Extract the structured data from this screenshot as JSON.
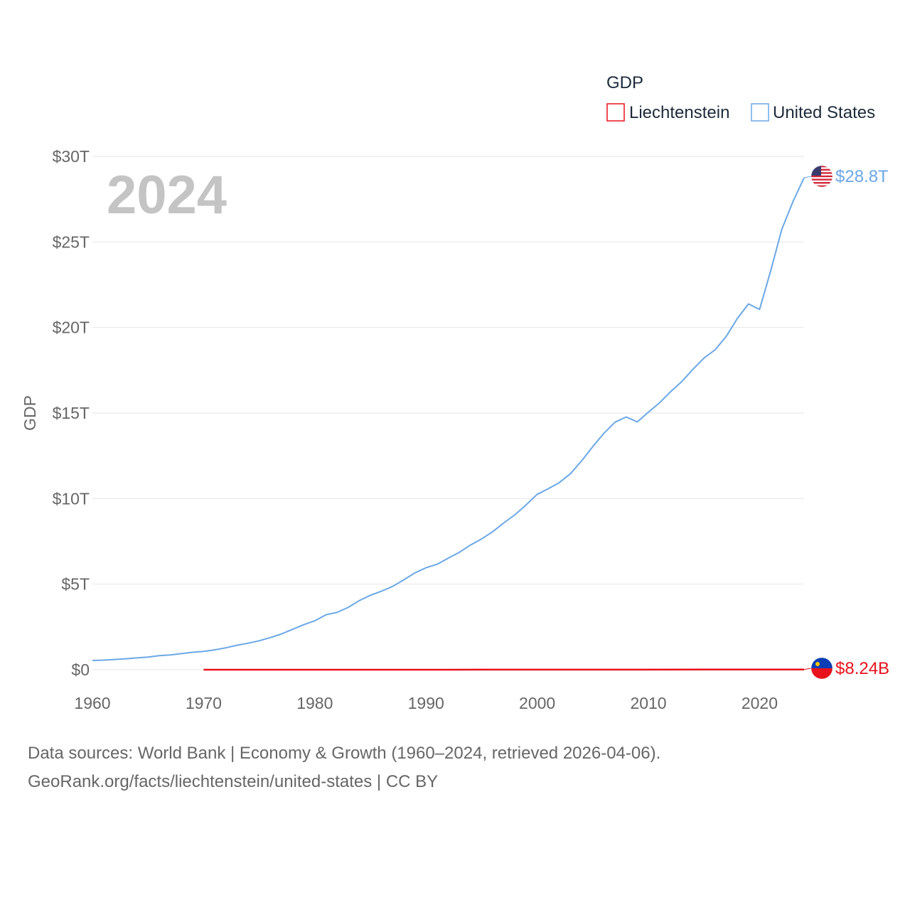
{
  "chart_data": {
    "type": "line",
    "title": "GDP",
    "ylabel": "GDP",
    "xlabel": "",
    "xlim": [
      1960,
      2024
    ],
    "ylim": [
      0,
      30
    ],
    "y_unit": "trillion USD",
    "x_ticks": [
      1960,
      1970,
      1980,
      1990,
      2000,
      2010,
      2020
    ],
    "x_tick_labels": [
      "1960",
      "1970",
      "1980",
      "1990",
      "2000",
      "2010",
      "2020"
    ],
    "y_ticks": [
      0,
      5,
      10,
      15,
      20,
      25,
      30
    ],
    "y_tick_labels": [
      "$0",
      "$5T",
      "$10T",
      "$15T",
      "$20T",
      "$25T",
      "$30T"
    ],
    "grid": true,
    "legend_position": "top-right",
    "year_label": "2024",
    "series": [
      {
        "name": "Liechtenstein",
        "color": "#e8121c",
        "end_label": "$8.24B",
        "flag": "liechtenstein-flag",
        "x": [
          1970,
          1975,
          1980,
          1985,
          1990,
          1995,
          2000,
          2005,
          2010,
          2015,
          2020,
          2023,
          2024
        ],
        "values": [
          0.0001,
          0.0004,
          0.0007,
          0.0006,
          0.0014,
          0.0024,
          0.0025,
          0.0037,
          0.0051,
          0.0063,
          0.0064,
          0.0082,
          0.0082
        ]
      },
      {
        "name": "United States",
        "color": "#6aa8e6",
        "end_label": "$28.8T",
        "flag": "united-states-flag",
        "x": [
          1960,
          1961,
          1962,
          1963,
          1964,
          1965,
          1966,
          1967,
          1968,
          1969,
          1970,
          1971,
          1972,
          1973,
          1974,
          1975,
          1976,
          1977,
          1978,
          1979,
          1980,
          1981,
          1982,
          1983,
          1984,
          1985,
          1986,
          1987,
          1988,
          1989,
          1990,
          1991,
          1992,
          1993,
          1994,
          1995,
          1996,
          1997,
          1998,
          1999,
          2000,
          2001,
          2002,
          2003,
          2004,
          2005,
          2006,
          2007,
          2008,
          2009,
          2010,
          2011,
          2012,
          2013,
          2014,
          2015,
          2016,
          2017,
          2018,
          2019,
          2020,
          2021,
          2022,
          2023,
          2024
        ],
        "values": [
          0.54,
          0.56,
          0.6,
          0.64,
          0.69,
          0.74,
          0.82,
          0.86,
          0.94,
          1.02,
          1.07,
          1.16,
          1.28,
          1.43,
          1.55,
          1.69,
          1.88,
          2.09,
          2.36,
          2.63,
          2.86,
          3.21,
          3.35,
          3.64,
          4.04,
          4.35,
          4.59,
          4.87,
          5.25,
          5.66,
          5.96,
          6.16,
          6.52,
          6.86,
          7.29,
          7.64,
          8.07,
          8.58,
          9.06,
          9.63,
          10.25,
          10.58,
          10.94,
          11.46,
          12.21,
          13.04,
          13.82,
          14.47,
          14.77,
          14.48,
          15.05,
          15.6,
          16.25,
          16.84,
          17.55,
          18.21,
          18.7,
          19.48,
          20.53,
          21.38,
          21.06,
          23.32,
          25.74,
          27.36,
          28.75
        ]
      }
    ]
  },
  "footer": {
    "line1": "Data sources: World Bank | Economy & Growth (1960–2024, retrieved 2026-04-06).",
    "line2": "GeoRank.org/facts/liechtenstein/united-states | CC BY"
  }
}
